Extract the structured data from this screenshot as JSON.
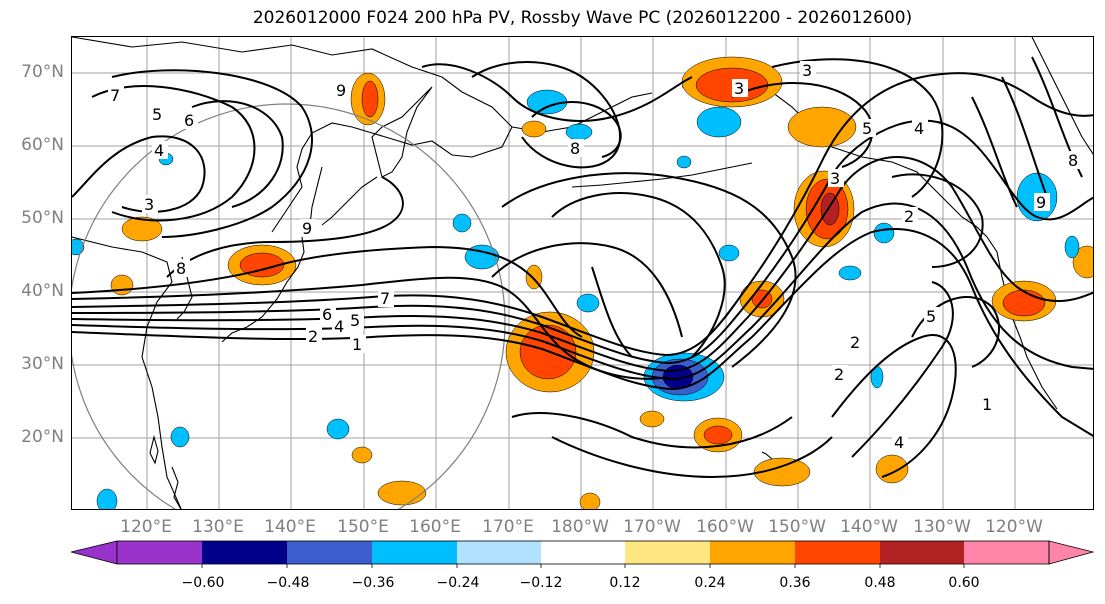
{
  "title": "2026012000 F024 200 hPa PV, Rossby Wave PC (2026012200 - 2026012600)",
  "latitude_labels": [
    "70°N",
    "60°N",
    "50°N",
    "40°N",
    "30°N",
    "20°N"
  ],
  "longitude_labels": [
    "120°E",
    "130°E",
    "140°E",
    "150°E",
    "160°E",
    "170°E",
    "180°W",
    "170°W",
    "160°W",
    "150°W",
    "140°W",
    "130°W",
    "120°W"
  ],
  "colorbar": {
    "tick_labels": [
      "−0.60",
      "−0.48",
      "−0.36",
      "−0.24",
      "−0.12",
      "0.12",
      "0.24",
      "0.36",
      "0.48",
      "0.60"
    ],
    "colors": [
      "#9933cc",
      "#00008b",
      "#3a5fcd",
      "#00bfff",
      "#b0e2ff",
      "#ffffff",
      "#ffe680",
      "#ffa500",
      "#ff4500",
      "#b22222",
      "#ff85a8"
    ]
  },
  "contour_labels": [
    "7",
    "5",
    "6",
    "4",
    "3",
    "8",
    "9",
    "8",
    "6",
    "7",
    "5",
    "4",
    "2",
    "1",
    "3",
    "5",
    "3",
    "2",
    "4",
    "3",
    "5",
    "2",
    "1",
    "2",
    "4",
    "8",
    "9",
    "9"
  ],
  "shading_colors": {
    "pos_light": "#ffe680",
    "pos_mid": "#ffa500",
    "pos_strong": "#ff4500",
    "pos_extreme": "#b22222",
    "neg_light": "#b0e2ff",
    "neg_mid": "#00bfff",
    "neg_strong": "#3a5fcd",
    "neg_extreme": "#00008b"
  }
}
